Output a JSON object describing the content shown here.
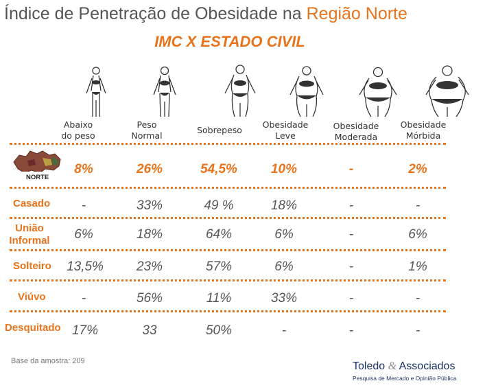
{
  "title": {
    "main": "Índice de Penetração de Obesidade na ",
    "highlight": "Região Norte"
  },
  "subtitle": "IMC X ESTADO CIVIL",
  "categories": [
    {
      "line1": "Abaixo",
      "line2": "do peso"
    },
    {
      "line1": "Peso",
      "line2": "Normal"
    },
    {
      "line1": "Sobrepeso",
      "line2": ""
    },
    {
      "line1": "Obesidade",
      "line2": "Leve"
    },
    {
      "line1": "Obesidade",
      "line2": "Moderada"
    },
    {
      "line1": "Obesidade",
      "line2": "Mórbida"
    }
  ],
  "region": {
    "label": "NORTE",
    "values": [
      "8%",
      "26%",
      "54,5%",
      "10%",
      "-",
      "2%"
    ]
  },
  "rows": [
    {
      "line1": "Casado",
      "line2": "",
      "values": [
        "-",
        "33%",
        "49 %",
        "18%",
        "-",
        "-"
      ]
    },
    {
      "line1": "União",
      "line2": "Informal",
      "values": [
        "6%",
        "18%",
        "64%",
        "6%",
        "-",
        "6%"
      ]
    },
    {
      "line1": "Solteiro",
      "line2": "",
      "values": [
        "13,5%",
        "23%",
        "57%",
        "6%",
        "-",
        "1%"
      ]
    },
    {
      "line1": "Viúvo",
      "line2": "",
      "values": [
        "-",
        "56%",
        "11%",
        "33%",
        "-",
        "-"
      ]
    },
    {
      "line1": "Desquitado",
      "line2": "",
      "values": [
        "17%",
        "33",
        "50%",
        "-",
        "-",
        "-"
      ]
    }
  ],
  "footer": {
    "sample": "Base da amostra: 209",
    "brand_name": "Toledo",
    "brand_amp": "&",
    "brand_name2": "Associados",
    "brand_tagline": "Pesquisa de Mercado e Opinião Pública"
  },
  "colors": {
    "accent": "#e8731a",
    "text": "#555555",
    "brand": "#1a3366"
  }
}
